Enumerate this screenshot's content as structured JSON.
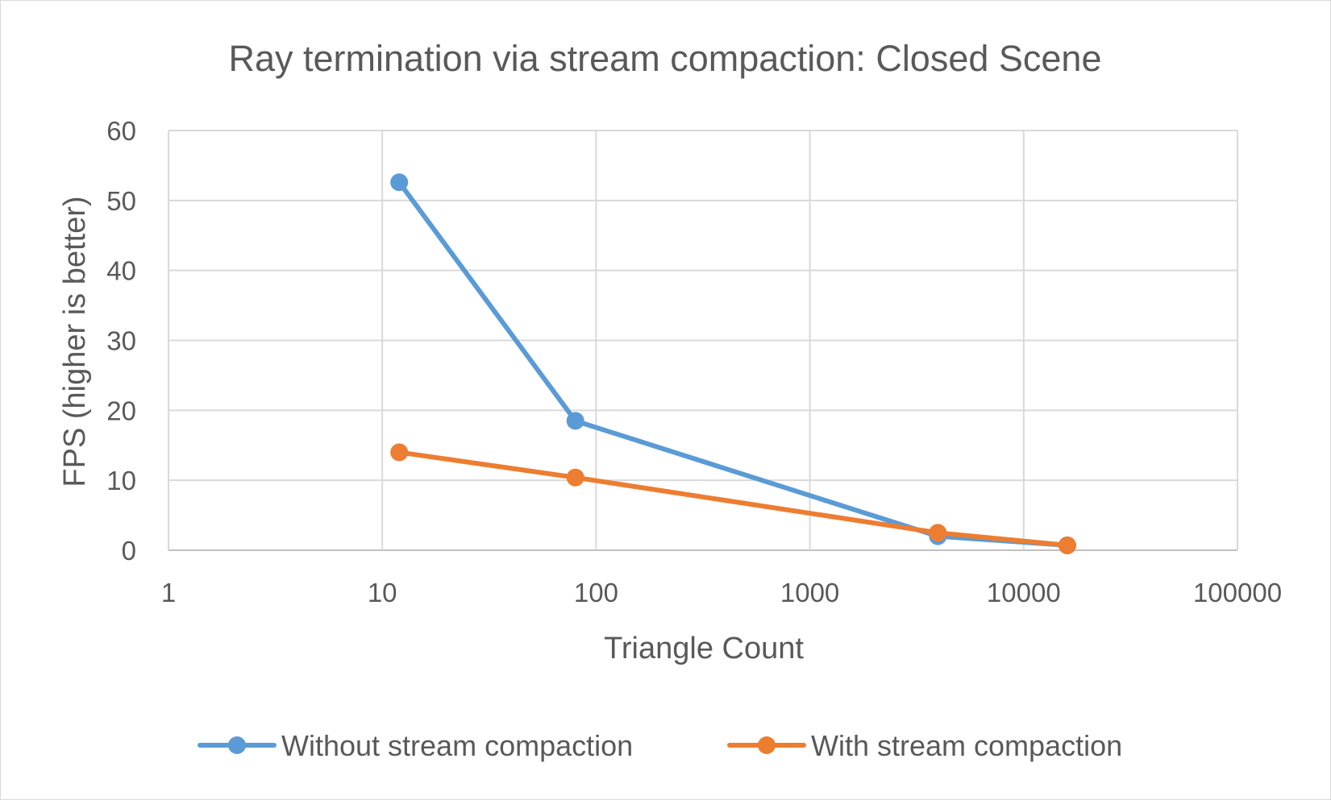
{
  "chart_data": {
    "type": "line",
    "title": "Ray termination via stream compaction: Closed Scene",
    "xlabel": "Triangle Count",
    "ylabel": "FPS (higher is better)",
    "x_scale": "log",
    "xlim": [
      1,
      100000
    ],
    "ylim": [
      0,
      60
    ],
    "x_ticks": [
      "1",
      "10",
      "100",
      "1000",
      "10000",
      "100000"
    ],
    "y_ticks": [
      "0",
      "10",
      "20",
      "30",
      "40",
      "50",
      "60"
    ],
    "grid": true,
    "legend_position": "bottom",
    "series": [
      {
        "name": "Without stream compaction",
        "color": "#5b9bd5",
        "x": [
          12,
          80,
          3968,
          16000
        ],
        "y": [
          52.6,
          18.5,
          2.0,
          0.7
        ]
      },
      {
        "name": "With stream compaction",
        "color": "#ed7d31",
        "x": [
          12,
          80,
          3968,
          16000
        ],
        "y": [
          14.0,
          10.4,
          2.5,
          0.7
        ]
      }
    ]
  }
}
